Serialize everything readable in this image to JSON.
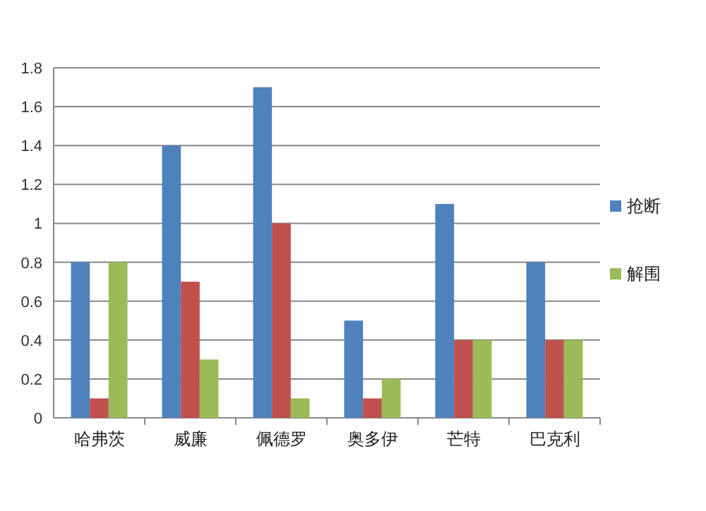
{
  "chart_data": {
    "type": "bar",
    "categories": [
      "哈弗茨",
      "威廉",
      "佩德罗",
      "奥多伊",
      "芒特",
      "巴克利"
    ],
    "series": [
      {
        "name": "抢断",
        "color": "#4f81bd",
        "values": [
          0.8,
          1.4,
          1.7,
          0.5,
          1.1,
          0.8
        ]
      },
      {
        "color": "#c0504d",
        "values": [
          0.1,
          0.7,
          1.0,
          0.1,
          0.4,
          0.4
        ]
      },
      {
        "name": "解围",
        "color": "#9bbb59",
        "values": [
          0.8,
          0.3,
          0.1,
          0.2,
          0.4,
          0.4
        ]
      }
    ],
    "ylim": [
      0,
      1.8
    ],
    "yticks": [
      0,
      0.2,
      0.4,
      0.6,
      0.8,
      1,
      1.2,
      1.4,
      1.6,
      1.8
    ],
    "grid": "y",
    "legend": "right"
  }
}
